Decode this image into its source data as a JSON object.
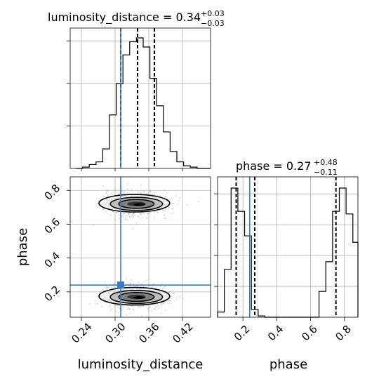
{
  "chart_data": [
    {
      "type": "histogram",
      "panel": "luminosity_distance marginal",
      "title_main": "luminosity_distance = 0.34",
      "title_sup": "+0.03",
      "title_sub": "−0.03",
      "xlim": [
        0.22,
        0.47
      ],
      "bin_edges": [
        0.23,
        0.242,
        0.254,
        0.266,
        0.278,
        0.29,
        0.302,
        0.314,
        0.326,
        0.338,
        0.35,
        0.362,
        0.374,
        0.386,
        0.398,
        0.41,
        0.422,
        0.434,
        0.446,
        0.458,
        0.47
      ],
      "counts": [
        0.0,
        0.01,
        0.03,
        0.05,
        0.15,
        0.41,
        0.65,
        0.87,
        0.97,
        1.0,
        0.93,
        0.69,
        0.48,
        0.28,
        0.13,
        0.05,
        0.02,
        0.01,
        0.0,
        0.0
      ],
      "quantiles": [
        0.31,
        0.34,
        0.37
      ],
      "truth": 0.31,
      "yticks_count": 3
    },
    {
      "type": "histogram",
      "panel": "phase marginal",
      "title_main": "phase = 0.27",
      "title_sup": "+0.48",
      "title_sub": "−0.11",
      "xlim": [
        0.05,
        0.88
      ],
      "bin_edges": [
        0.05,
        0.09,
        0.13,
        0.17,
        0.21,
        0.25,
        0.29,
        0.33,
        0.37,
        0.41,
        0.45,
        0.49,
        0.53,
        0.57,
        0.61,
        0.65,
        0.69,
        0.73,
        0.77,
        0.81,
        0.85,
        0.88
      ],
      "counts": [
        0.04,
        0.37,
        1.0,
        0.82,
        0.63,
        0.06,
        0.01,
        0.0,
        0.0,
        0.0,
        0.0,
        0.0,
        0.0,
        0.0,
        0.0,
        0.2,
        0.43,
        0.82,
        1.0,
        0.8,
        0.58
      ],
      "quantiles": [
        0.16,
        0.27,
        0.75
      ],
      "truth": 0.24,
      "xticks": [
        "0.2",
        "0.4",
        "0.6",
        "0.8"
      ],
      "xtick_values": [
        0.2,
        0.4,
        0.6,
        0.8
      ],
      "xlabel": "phase",
      "yticks_count": 4
    },
    {
      "type": "scatter",
      "panel": "2D joint posterior (luminosity_distance vs phase)",
      "xlim": [
        0.22,
        0.47
      ],
      "ylim": [
        0.05,
        0.88
      ],
      "xticks": [
        "0.24",
        "0.30",
        "0.36",
        "0.42"
      ],
      "xtick_values": [
        0.24,
        0.3,
        0.36,
        0.42
      ],
      "yticks": [
        "0.2",
        "0.4",
        "0.6",
        "0.8"
      ],
      "ytick_values": [
        0.2,
        0.4,
        0.6,
        0.8
      ],
      "xlabel": "luminosity_distance",
      "ylabel": "phase",
      "truth": {
        "x": 0.31,
        "y": 0.24
      },
      "modes": [
        {
          "x": 0.338,
          "y": 0.72,
          "sx": 0.03,
          "sy": 0.04
        },
        {
          "x": 0.338,
          "y": 0.17,
          "sx": 0.03,
          "sy": 0.04
        }
      ],
      "contour_levels": [
        "0.5σ",
        "1σ",
        "1.5σ",
        "2σ"
      ]
    }
  ],
  "colors": {
    "truth": "#3b7bbf",
    "grid": "#b0b0b0",
    "line": "#000000",
    "points": "#9a9a9a"
  }
}
